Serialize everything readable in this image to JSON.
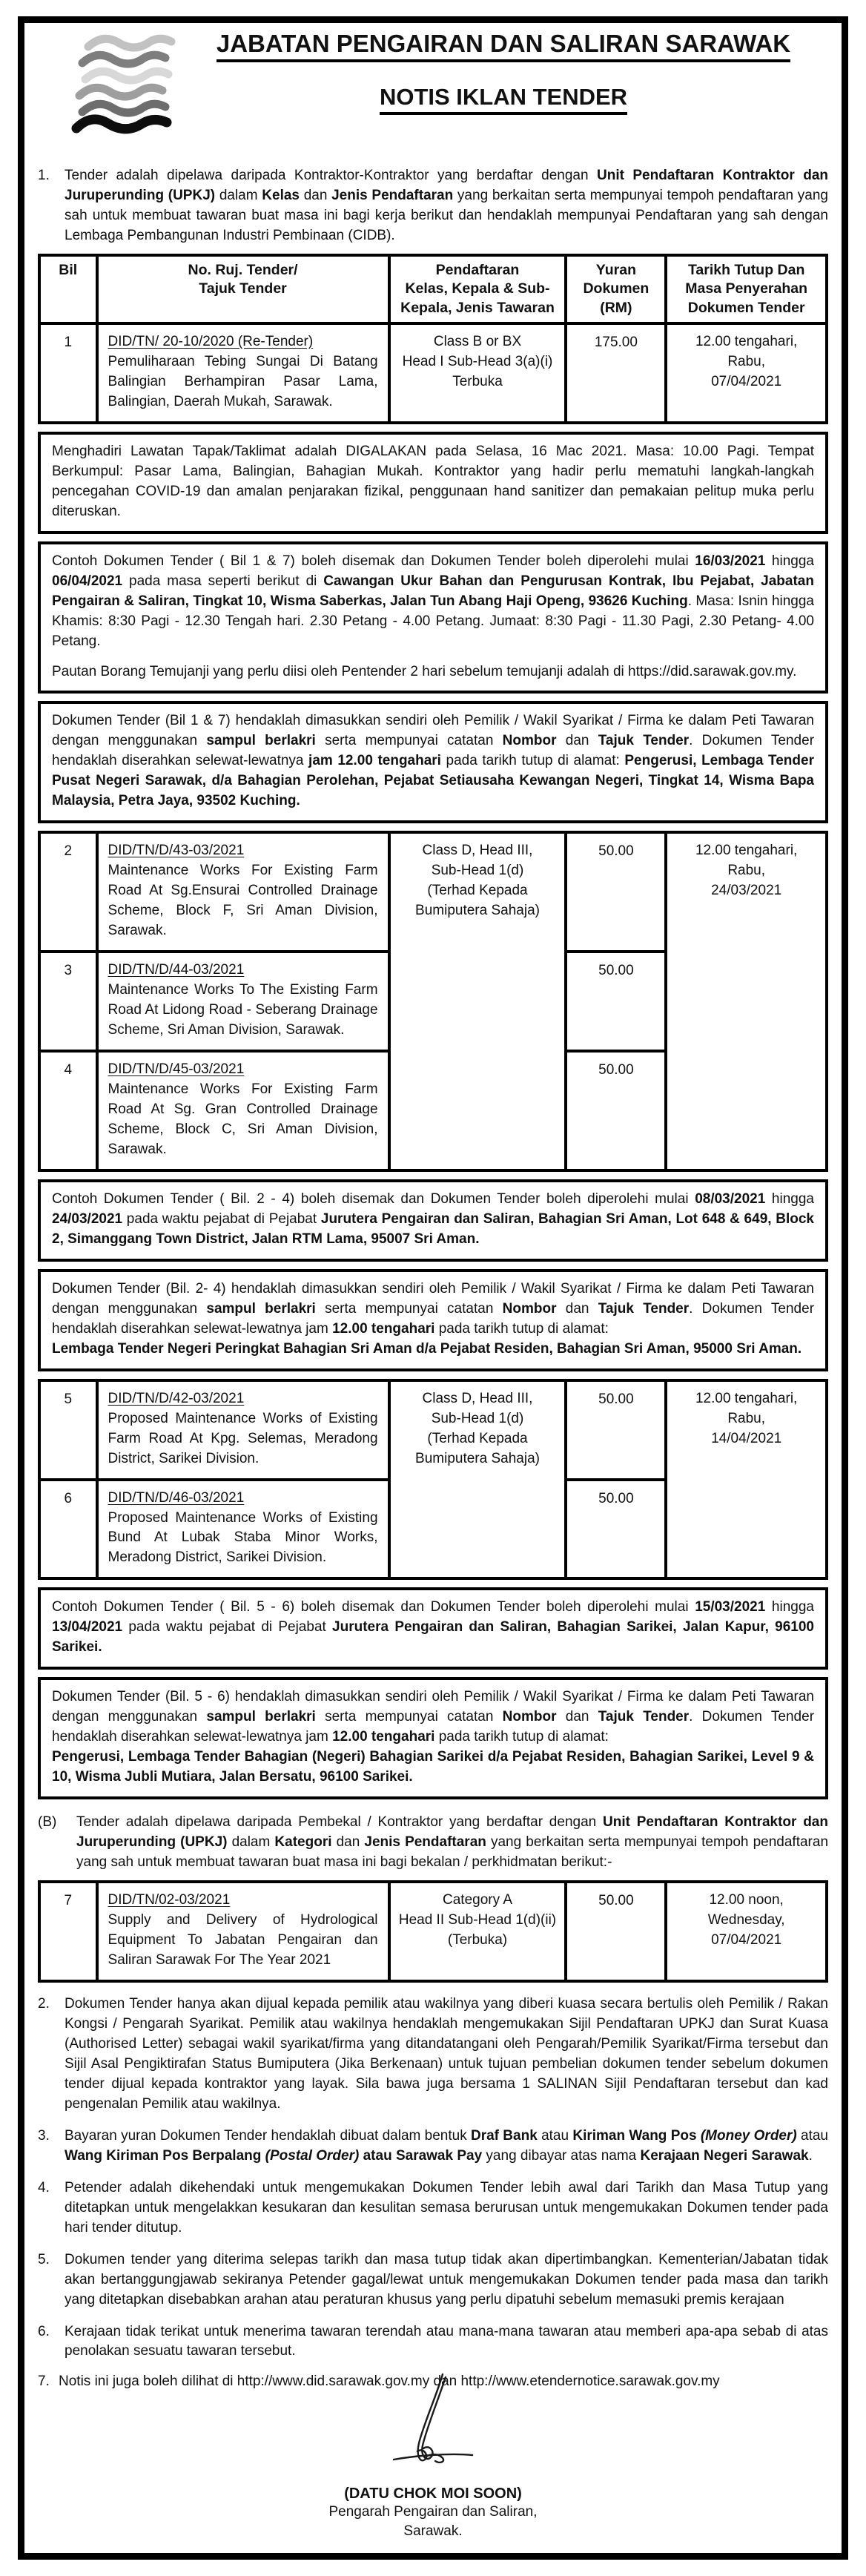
{
  "colors": {
    "ink": "#111111",
    "paper": "#ffffff"
  },
  "header": {
    "department": "JABATAN PENGAIRAN DAN SALIRAN SARAWAK",
    "title": "NOTIS IKLAN TENDER",
    "logo_icon": "waves-logo",
    "logo_colors": [
      "#c2c2c2",
      "#7e7e7e",
      "#d8d8d8",
      "#9e9e9e",
      "#6d6d6d",
      "#0d0d0d"
    ]
  },
  "intro": {
    "num": "1.",
    "segments": [
      {
        "t": "Tender adalah dipelawa daripada Kontraktor-Kontraktor yang berdaftar dengan "
      },
      {
        "t": "Unit Pendaftaran Kontraktor dan Juruperunding (UPKJ)",
        "b": true
      },
      {
        "t": " dalam "
      },
      {
        "t": "Kelas",
        "b": true
      },
      {
        "t": " dan "
      },
      {
        "t": "Jenis Pendaftaran",
        "b": true
      },
      {
        "t": " yang berkaitan serta mempunyai tempoh pendaftaran yang sah untuk membuat tawaran buat masa ini bagi kerja berikut dan hendaklah mempunyai Pendaftaran yang sah dengan Lembaga Pembangunan Industri Pembinaan (CIDB)."
      }
    ]
  },
  "table": {
    "headers": {
      "bil": "Bil",
      "ref": "No. Ruj. Tender/\nTajuk Tender",
      "registration": "Pendaftaran\nKelas, Kepala & Sub-\nKepala, Jenis Tawaran",
      "fee": "Yuran\nDokumen\n(RM)",
      "closing": "Tarikh Tutup Dan\nMasa Penyerahan\nDokumen Tender"
    },
    "rows": [
      {
        "bil": "1",
        "ref_no": "DID/TN/ 20-10/2020 (Re-Tender)",
        "title": "Pemuliharaan Tebing Sungai Di Batang Balingian Berhampiran Pasar Lama, Balingian, Daerah Mukah, Sarawak.",
        "registration": "Class B or BX\nHead I Sub-Head 3(a)(i)\nTerbuka",
        "fee": "175.00",
        "closing": "12.00 tengahari,\nRabu,\n07/04/2021"
      },
      {
        "bil": "2",
        "ref_no": "DID/TN/D/43-03/2021",
        "title": "Maintenance Works For Existing Farm Road At Sg.Ensurai Controlled Drainage Scheme, Block F, Sri Aman Division, Sarawak.",
        "fee": "50.00"
      },
      {
        "bil": "3",
        "ref_no": "DID/TN/D/44-03/2021",
        "title": "Maintenance Works To The Existing Farm Road At Lidong Road - Seberang Drainage Scheme, Sri Aman Division, Sarawak.",
        "fee": "50.00"
      },
      {
        "bil": "4",
        "ref_no": "DID/TN/D/45-03/2021",
        "title": "Maintenance Works For Existing Farm Road At Sg. Gran Controlled Drainage Scheme, Block C, Sri Aman Division, Sarawak.",
        "fee": "50.00"
      },
      {
        "bil": "5",
        "ref_no": "DID/TN/D/42-03/2021",
        "title": "Proposed Maintenance Works of Existing Farm Road At Kpg. Selemas, Meradong District, Sarikei Division.",
        "fee": "50.00"
      },
      {
        "bil": "6",
        "ref_no": "DID/TN/D/46-03/2021",
        "title": "Proposed Maintenance Works of Existing Bund At Lubak Staba Minor Works, Meradong District, Sarikei Division.",
        "fee": "50.00"
      },
      {
        "bil": "7",
        "ref_no": "DID/TN/02-03/2021",
        "title": "Supply and Delivery of Hydrological Equipment To Jabatan Pengairan dan Saliran Sarawak For The Year 2021",
        "registration": "Category A\nHead II Sub-Head 1(d)(ii)\n(Terbuka)",
        "fee": "50.00",
        "closing": "12.00 noon,\nWednesday,\n07/04/2021"
      }
    ],
    "merged": {
      "rows_2_4": {
        "registration": "Class D, Head III,\nSub-Head 1(d)\n(Terhad Kepada\nBumiputera Sahaja)",
        "closing": "12.00 tengahari,\nRabu,\n24/03/2021"
      },
      "rows_5_6": {
        "registration": "Class D, Head III,\nSub-Head 1(d)\n(Terhad Kepada\nBumiputera Sahaja)",
        "closing": "12.00 tengahari,\nRabu,\n14/04/2021"
      }
    }
  },
  "notes": {
    "site_visit": [
      {
        "t": "Menghadiri Lawatan Tapak/Taklimat adalah DIGALAKAN pada Selasa, 16 Mac 2021. Masa: 10.00 Pagi. Tempat Berkumpul: Pasar Lama, Balingian, Bahagian Mukah. Kontraktor yang hadir perlu mematuhi langkah-langkah pencegahan COVID-19 dan amalan penjarakan fizikal, penggunaan hand sanitizer dan pemakaian pelitup muka perlu diteruskan."
      }
    ],
    "contoh_1_7_p1": [
      {
        "t": "Contoh Dokumen Tender ( Bil 1 & 7) boleh disemak dan Dokumen Tender boleh diperolehi mulai "
      },
      {
        "t": "16/03/2021",
        "b": true
      },
      {
        "t": " hingga "
      },
      {
        "t": "06/04/2021",
        "b": true
      },
      {
        "t": " pada masa seperti berikut  di "
      },
      {
        "t": "Cawangan Ukur Bahan dan Pengurusan Kontrak, Ibu Pejabat, Jabatan Pengairan & Saliran, Tingkat 10, Wisma Saberkas, Jalan Tun Abang Haji Openg, 93626 Kuching",
        "b": true
      },
      {
        "t": ". Masa: Isnin hingga Khamis:  8:30 Pagi - 12.30 Tengah hari. 2.30 Petang - 4.00 Petang.   Jumaat: 8:30 Pagi - 11.30 Pagi, 2.30 Petang- 4.00 Petang."
      }
    ],
    "contoh_1_7_p2": [
      {
        "t": "Pautan Borang Temujanji yang perlu diisi oleh Pentender 2 hari sebelum temujanji adalah di https://did.sarawak.gov.my."
      }
    ],
    "dokumen_1_7": [
      {
        "t": "Dokumen Tender (Bil 1 & 7) hendaklah dimasukkan sendiri oleh Pemilik / Wakil Syarikat / Firma ke dalam Peti Tawaran dengan menggunakan "
      },
      {
        "t": "sampul berlakri",
        "b": true
      },
      {
        "t": " serta mempunyai catatan "
      },
      {
        "t": "Nombor",
        "b": true
      },
      {
        "t": " dan "
      },
      {
        "t": "Tajuk Tender",
        "b": true
      },
      {
        "t": ". Dokumen Tender hendaklah diserahkan selewat-lewatnya "
      },
      {
        "t": "jam 12.00 tengahari",
        "b": true
      },
      {
        "t": " pada tarikh tutup di alamat: "
      },
      {
        "t": "Pengerusi, Lembaga Tender Pusat Negeri Sarawak, d/a Bahagian Perolehan, Pejabat Setiausaha Kewangan Negeri, Tingkat 14, Wisma Bapa Malaysia, Petra Jaya, 93502 Kuching.",
        "b": true
      }
    ],
    "contoh_2_4": [
      {
        "t": "Contoh Dokumen Tender ( Bil. 2 - 4) boleh disemak dan Dokumen Tender boleh diperolehi mulai "
      },
      {
        "t": "08/03/2021",
        "b": true
      },
      {
        "t": " hingga "
      },
      {
        "t": "24/03/2021",
        "b": true
      },
      {
        "t": " pada waktu pejabat di Pejabat "
      },
      {
        "t": "Jurutera Pengairan dan Saliran, Bahagian Sri Aman,  Lot 648 & 649, Block 2, Simanggang Town District,  Jalan RTM Lama, 95007 Sri Aman.",
        "b": true
      }
    ],
    "dokumen_2_4": [
      {
        "t": "Dokumen Tender (Bil. 2- 4) hendaklah dimasukkan sendiri oleh Pemilik / Wakil Syarikat / Firma ke dalam Peti Tawaran dengan menggunakan "
      },
      {
        "t": "sampul berlakri",
        "b": true
      },
      {
        "t": " serta mempunyai catatan "
      },
      {
        "t": "Nombor",
        "b": true
      },
      {
        "t": " dan "
      },
      {
        "t": "Tajuk Tender",
        "b": true
      },
      {
        "t": ". Dokumen Tender hendaklah diserahkan selewat-lewatnya jam "
      },
      {
        "t": "12.00 tengahari",
        "b": true
      },
      {
        "t": " pada tarikh tutup di alamat:\n"
      },
      {
        "t": "Lembaga Tender Negeri Peringkat Bahagian Sri Aman d/a Pejabat Residen, Bahagian Sri Aman, 95000 Sri Aman.",
        "b": true
      }
    ],
    "contoh_5_6": [
      {
        "t": "Contoh Dokumen Tender ( Bil. 5 - 6) boleh disemak dan Dokumen Tender boleh diperolehi mulai "
      },
      {
        "t": "15/03/2021",
        "b": true
      },
      {
        "t": " hingga "
      },
      {
        "t": "13/04/2021",
        "b": true
      },
      {
        "t": " pada waktu pejabat di Pejabat "
      },
      {
        "t": "Jurutera Pengairan dan Saliran, Bahagian Sarikei, Jalan Kapur, 96100 Sarikei.",
        "b": true
      }
    ],
    "dokumen_5_6": [
      {
        "t": "Dokumen Tender (Bil. 5 - 6) hendaklah dimasukkan sendiri oleh Pemilik / Wakil Syarikat / Firma ke dalam Peti Tawaran dengan menggunakan "
      },
      {
        "t": "sampul berlakri",
        "b": true
      },
      {
        "t": " serta mempunyai catatan "
      },
      {
        "t": "Nombor",
        "b": true
      },
      {
        "t": " dan "
      },
      {
        "t": "Tajuk Tender",
        "b": true
      },
      {
        "t": ". Dokumen Tender hendaklah diserahkan selewat-lewatnya jam "
      },
      {
        "t": "12.00 tengahari",
        "b": true
      },
      {
        "t": " pada tarikh tutup di alamat:\n"
      },
      {
        "t": "Pengerusi, Lembaga Tender Bahagian (Negeri) Bahagian Sarikei d/a Pejabat Residen, Bahagian Sarikei,  Level 9 & 10, Wisma Jubli Mutiara, Jalan Bersatu, 96100 Sarikei.",
        "b": true
      }
    ]
  },
  "section_b": {
    "num": "(B)",
    "segments": [
      {
        "t": "Tender adalah dipelawa daripada Pembekal / Kontraktor yang berdaftar dengan "
      },
      {
        "t": "Unit Pendaftaran Kontraktor dan Juruperunding (UPKJ)",
        "b": true
      },
      {
        "t": " dalam "
      },
      {
        "t": "Kategori",
        "b": true
      },
      {
        "t": " dan "
      },
      {
        "t": "Jenis Pendaftaran",
        "b": true
      },
      {
        "t": " yang berkaitan serta mempunyai tempoh pendaftaran yang sah untuk membuat tawaran buat masa ini bagi bekalan / perkhidmatan berikut:-"
      }
    ]
  },
  "clauses": [
    {
      "num": "2.",
      "segments": [
        {
          "t": "Dokumen Tender hanya akan dijual kepada pemilik atau wakilnya yang diberi kuasa secara bertulis oleh Pemilik / Rakan Kongsi / Pengarah Syarikat. Pemilik atau wakilnya hendaklah mengemukakan Sijil Pendaftaran UPKJ dan Surat Kuasa (Authorised Letter) sebagai wakil syarikat/firma yang ditandatangani oleh Pengarah/Pemilik Syarikat/Firma tersebut dan Sijil Asal Pengiktirafan Status Bumiputera (Jika Berkenaan) untuk  tujuan pembelian dokumen tender sebelum dokumen tender dijual kepada kontraktor yang layak. Sila bawa juga bersama 1 SALINAN Sijil Pendaftaran tersebut dan kad pengenalan Pemilik atau wakilnya."
        }
      ]
    },
    {
      "num": "3.",
      "segments": [
        {
          "t": "Bayaran yuran Dokumen Tender hendaklah dibuat dalam bentuk "
        },
        {
          "t": "Draf Bank",
          "b": true
        },
        {
          "t": " atau "
        },
        {
          "t": "Kiriman Wang Pos ",
          "b": true
        },
        {
          "t": "(Money Order)",
          "b": true,
          "i": true
        },
        {
          "t": " atau "
        },
        {
          "t": "Wang Kiriman Pos Berpalang ",
          "b": true
        },
        {
          "t": "(Postal Order)",
          "b": true,
          "i": true
        },
        {
          "t": " atau Sarawak Pay",
          "b": true
        },
        {
          "t": " yang dibayar atas nama "
        },
        {
          "t": "Kerajaan Negeri Sarawak",
          "b": true
        },
        {
          "t": "."
        }
      ]
    },
    {
      "num": "4.",
      "segments": [
        {
          "t": "Petender adalah dikehendaki untuk mengemukakan Dokumen Tender lebih awal dari Tarikh dan Masa Tutup yang ditetapkan untuk mengelakkan kesukaran dan kesulitan semasa berurusan untuk mengemukakan Dokumen tender pada hari tender ditutup."
        }
      ]
    },
    {
      "num": "5.",
      "segments": [
        {
          "t": "Dokumen tender yang diterima selepas tarikh dan masa tutup tidak akan dipertimbangkan. Kementerian/Jabatan tidak akan bertanggungjawab sekiranya Petender gagal/lewat untuk mengemukakan Dokumen tender pada masa dan tarikh yang ditetapkan disebabkan arahan atau peraturan khusus yang perlu dipatuhi sebelum memasuki premis kerajaan"
        }
      ]
    },
    {
      "num": "6.",
      "segments": [
        {
          "t": "Kerajaan tidak terikat untuk menerima tawaran terendah atau mana-mana tawaran atau memberi apa-apa sebab di atas penolakan sesuatu tawaran tersebut."
        }
      ]
    },
    {
      "num": "7.",
      "segments": [
        {
          "t": "Notis ini juga boleh dilihat di http://www.did.sarawak.gov.my dan http://www.etendernotice.sarawak.gov.my"
        }
      ]
    }
  ],
  "signature": {
    "icon": "signature-scribble-icon",
    "name": "(DATU CHOK MOI SOON)",
    "role_line1": "Pengarah Pengairan dan Saliran,",
    "role_line2": "Sarawak."
  }
}
